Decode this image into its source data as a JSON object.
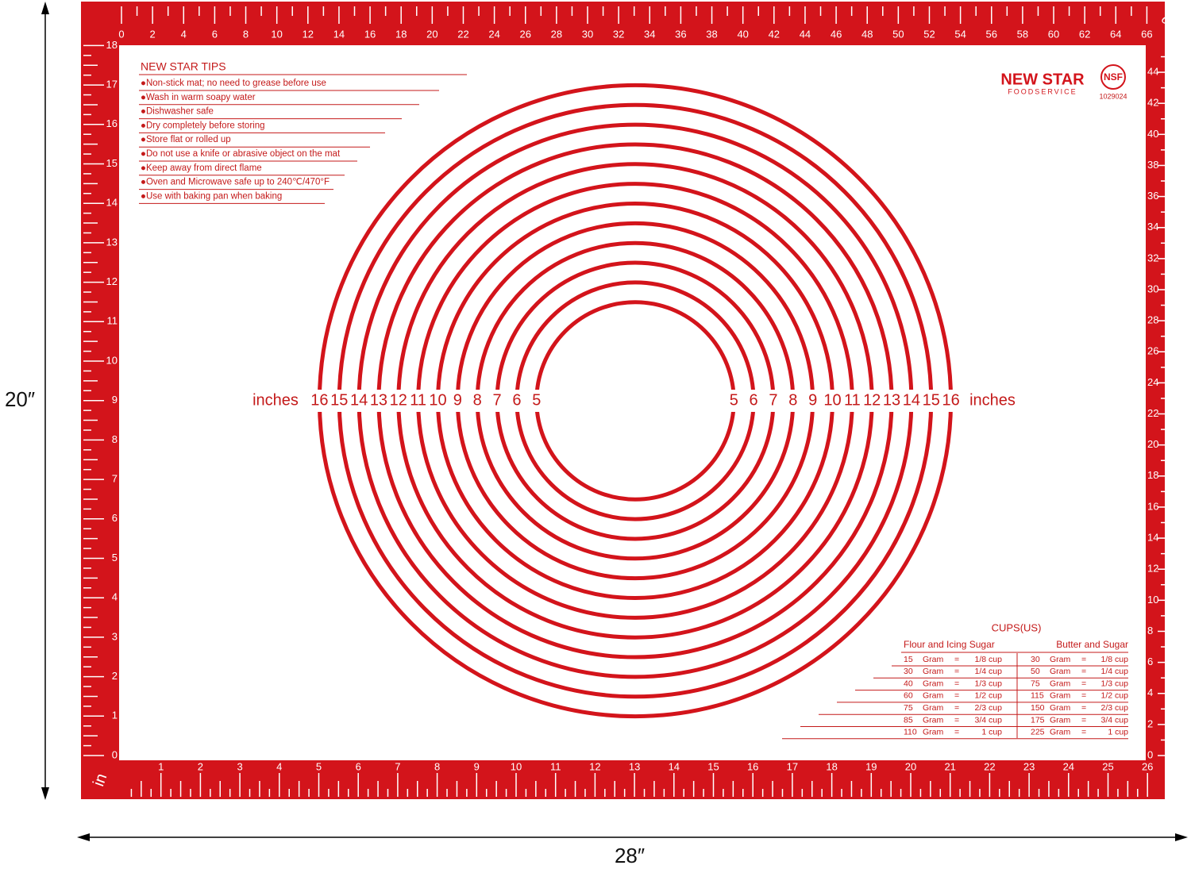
{
  "dimensions": {
    "height": "20″",
    "width": "28″"
  },
  "mat": {
    "top_ruler": {
      "unit": "cm",
      "labels": [
        0,
        2,
        4,
        6,
        8,
        10,
        12,
        14,
        16,
        18,
        20,
        22,
        24,
        26,
        28,
        30,
        32,
        34,
        36,
        38,
        40,
        42,
        44,
        46,
        48,
        50,
        52,
        54,
        56,
        58,
        60,
        62,
        64,
        66
      ]
    },
    "bottom_ruler": {
      "unit": "in",
      "labels": [
        1,
        2,
        3,
        4,
        5,
        6,
        7,
        8,
        9,
        10,
        11,
        12,
        13,
        14,
        15,
        16,
        17,
        18,
        19,
        20,
        21,
        22,
        23,
        24,
        25,
        26
      ]
    },
    "left_ruler": {
      "labels": [
        0,
        1,
        2,
        3,
        4,
        5,
        6,
        7,
        8,
        9,
        10,
        11,
        12,
        13,
        14,
        15,
        16,
        17,
        18
      ]
    },
    "right_ruler": {
      "labels": [
        0,
        2,
        4,
        6,
        8,
        10,
        12,
        14,
        16,
        18,
        20,
        22,
        24,
        26,
        28,
        30,
        32,
        34,
        36,
        38,
        40,
        42,
        44
      ]
    },
    "circles": {
      "unit": "inches",
      "diameters": [
        5,
        6,
        7,
        8,
        9,
        10,
        11,
        12,
        13,
        14,
        15,
        16
      ]
    },
    "tips": {
      "title": "NEW STAR TIPS",
      "items": [
        "●Non-stick mat; no need to grease before use",
        "●Wash in warm soapy water",
        "●Dishwasher safe",
        "●Dry completely before storing",
        "●Store flat or rolled up",
        "●Do not use a knife or abrasive object on the mat",
        "●Keep away from direct flame",
        "●Oven and Microwave safe up to 240℃/470°F",
        "●Use with baking pan when baking"
      ]
    },
    "logo": {
      "brand": "NEW STAR",
      "sub": "FOODSERVICE",
      "cert": "NSF",
      "code": "1029024"
    },
    "cups_table": {
      "title": "CUPS(US)",
      "columns": [
        {
          "header": "Flour and Icing Sugar",
          "rows": [
            [
              15,
              "Gram",
              "=",
              "1/8 cup"
            ],
            [
              30,
              "Gram",
              "=",
              "1/4 cup"
            ],
            [
              40,
              "Gram",
              "=",
              "1/3 cup"
            ],
            [
              60,
              "Gram",
              "=",
              "1/2 cup"
            ],
            [
              75,
              "Gram",
              "=",
              "2/3 cup"
            ],
            [
              85,
              "Gram",
              "=",
              "3/4 cup"
            ],
            [
              110,
              "Gram",
              "=",
              "1 cup"
            ]
          ]
        },
        {
          "header": "Butter and Sugar",
          "rows": [
            [
              30,
              "Gram",
              "=",
              "1/8 cup"
            ],
            [
              50,
              "Gram",
              "=",
              "1/4 cup"
            ],
            [
              75,
              "Gram",
              "=",
              "1/3 cup"
            ],
            [
              115,
              "Gram",
              "=",
              "1/2 cup"
            ],
            [
              150,
              "Gram",
              "=",
              "2/3 cup"
            ],
            [
              175,
              "Gram",
              "=",
              "3/4 cup"
            ],
            [
              225,
              "Gram",
              "=",
              "1 cup"
            ]
          ]
        }
      ]
    }
  }
}
